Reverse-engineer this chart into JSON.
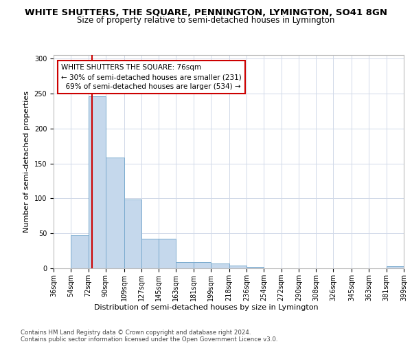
{
  "title": "WHITE SHUTTERS, THE SQUARE, PENNINGTON, LYMINGTON, SO41 8GN",
  "subtitle": "Size of property relative to semi-detached houses in Lymington",
  "xlabel": "Distribution of semi-detached houses by size in Lymington",
  "ylabel": "Number of semi-detached properties",
  "bar_edges": [
    36,
    54,
    72,
    90,
    109,
    127,
    145,
    163,
    181,
    199,
    218,
    236,
    254,
    272,
    290,
    308,
    326,
    345,
    363,
    381,
    399
  ],
  "bar_heights": [
    0,
    47,
    246,
    158,
    98,
    42,
    42,
    9,
    9,
    7,
    4,
    2,
    0,
    0,
    0,
    0,
    0,
    0,
    0,
    3
  ],
  "bar_labels": [
    "36sqm",
    "54sqm",
    "72sqm",
    "90sqm",
    "109sqm",
    "127sqm",
    "145sqm",
    "163sqm",
    "181sqm",
    "199sqm",
    "218sqm",
    "236sqm",
    "254sqm",
    "272sqm",
    "290sqm",
    "308sqm",
    "326sqm",
    "345sqm",
    "363sqm",
    "381sqm",
    "399sqm"
  ],
  "bar_color": "#c5d8ec",
  "bar_edge_color": "#7aaace",
  "property_size": 76,
  "property_label": "WHITE SHUTTERS THE SQUARE: 76sqm",
  "smaller_pct": "30%",
  "smaller_count": 231,
  "larger_pct": "69%",
  "larger_count": 534,
  "vline_color": "#cc0000",
  "annotation_box_edge": "#cc0000",
  "ylim": [
    0,
    305
  ],
  "yticks": [
    0,
    50,
    100,
    150,
    200,
    250,
    300
  ],
  "grid_color": "#d0d8e8",
  "footnote1": "Contains HM Land Registry data © Crown copyright and database right 2024.",
  "footnote2": "Contains public sector information licensed under the Open Government Licence v3.0.",
  "title_fontsize": 9.5,
  "subtitle_fontsize": 8.5,
  "axis_label_fontsize": 8,
  "tick_fontsize": 7,
  "annotation_fontsize": 7.5
}
